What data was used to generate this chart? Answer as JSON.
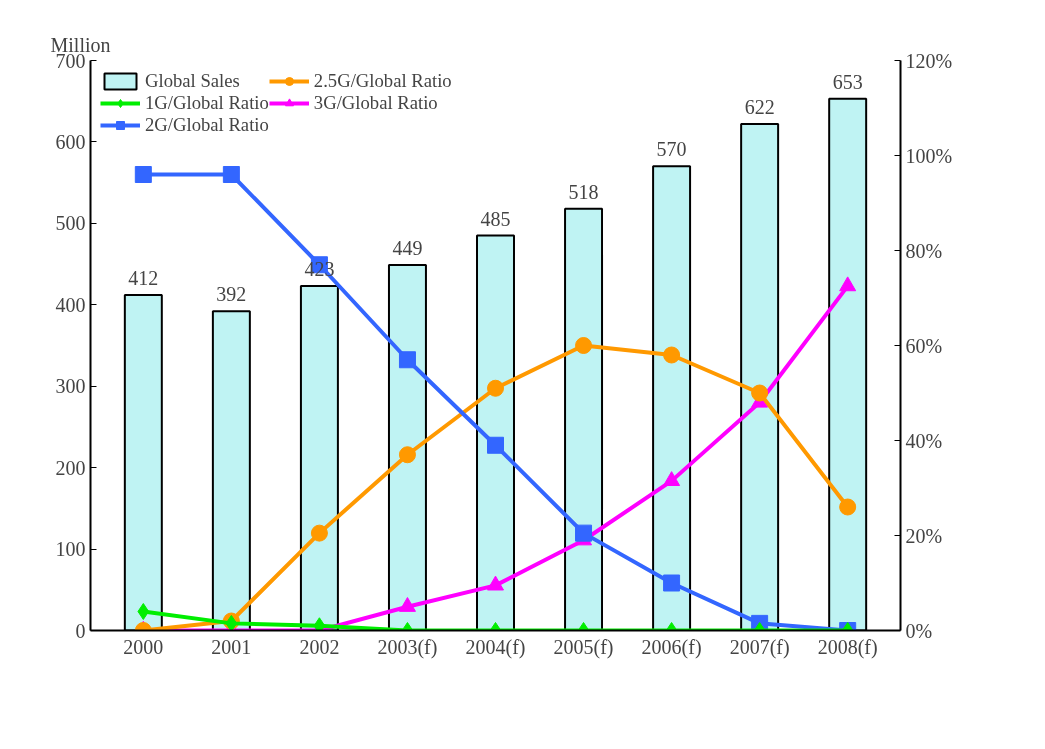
{
  "chart_data": {
    "type": "bar",
    "ylabel": "Million",
    "categories": [
      "2000",
      "2001",
      "2002",
      "2003(f)",
      "2004(f)",
      "2005(f)",
      "2006(f)",
      "2007(f)",
      "2008(f)"
    ],
    "ylim": [
      0,
      700
    ],
    "yticks": [
      0,
      100,
      200,
      300,
      400,
      500,
      600,
      700
    ],
    "y2lim": [
      0,
      120
    ],
    "y2ticks": [
      {
        "value": 0,
        "label": "0%"
      },
      {
        "value": 20,
        "label": "20%"
      },
      {
        "value": 40,
        "label": "40%"
      },
      {
        "value": 60,
        "label": "60%"
      },
      {
        "value": 80,
        "label": "80%"
      },
      {
        "value": 100,
        "label": "100%"
      },
      {
        "value": 120,
        "label": "120%"
      }
    ],
    "grid": false,
    "legend": "top left",
    "series": [
      {
        "name": "Global Sales",
        "color": "#bff3f3",
        "data_labels": true,
        "values": [
          412,
          392,
          423,
          449,
          485,
          518,
          570,
          622,
          653
        ]
      },
      {
        "name": "1G/Global Ratio",
        "type": "line",
        "axis": "y2",
        "marker": "diamond",
        "color": "#00ee00",
        "values": [
          4,
          1.5,
          1,
          0,
          0,
          0,
          0,
          0,
          0
        ]
      },
      {
        "name": "2G/Global Ratio",
        "type": "line",
        "axis": "y2",
        "marker": "square",
        "color": "#3366ff",
        "values": [
          96,
          96,
          77,
          57,
          39,
          20.5,
          10,
          1.5,
          0
        ]
      },
      {
        "name": "2.5G/Global Ratio",
        "type": "line",
        "axis": "y2",
        "marker": "circle",
        "color": "#ff9900",
        "values": [
          0,
          2,
          20.5,
          37,
          51,
          60,
          58,
          50,
          26
        ]
      },
      {
        "name": "3G/Global Ratio",
        "type": "line",
        "axis": "y2",
        "marker": "triangle",
        "color": "#ff00ff",
        "values": [
          0,
          0,
          0,
          5,
          9.5,
          19,
          31.5,
          48,
          72.5
        ]
      }
    ]
  }
}
